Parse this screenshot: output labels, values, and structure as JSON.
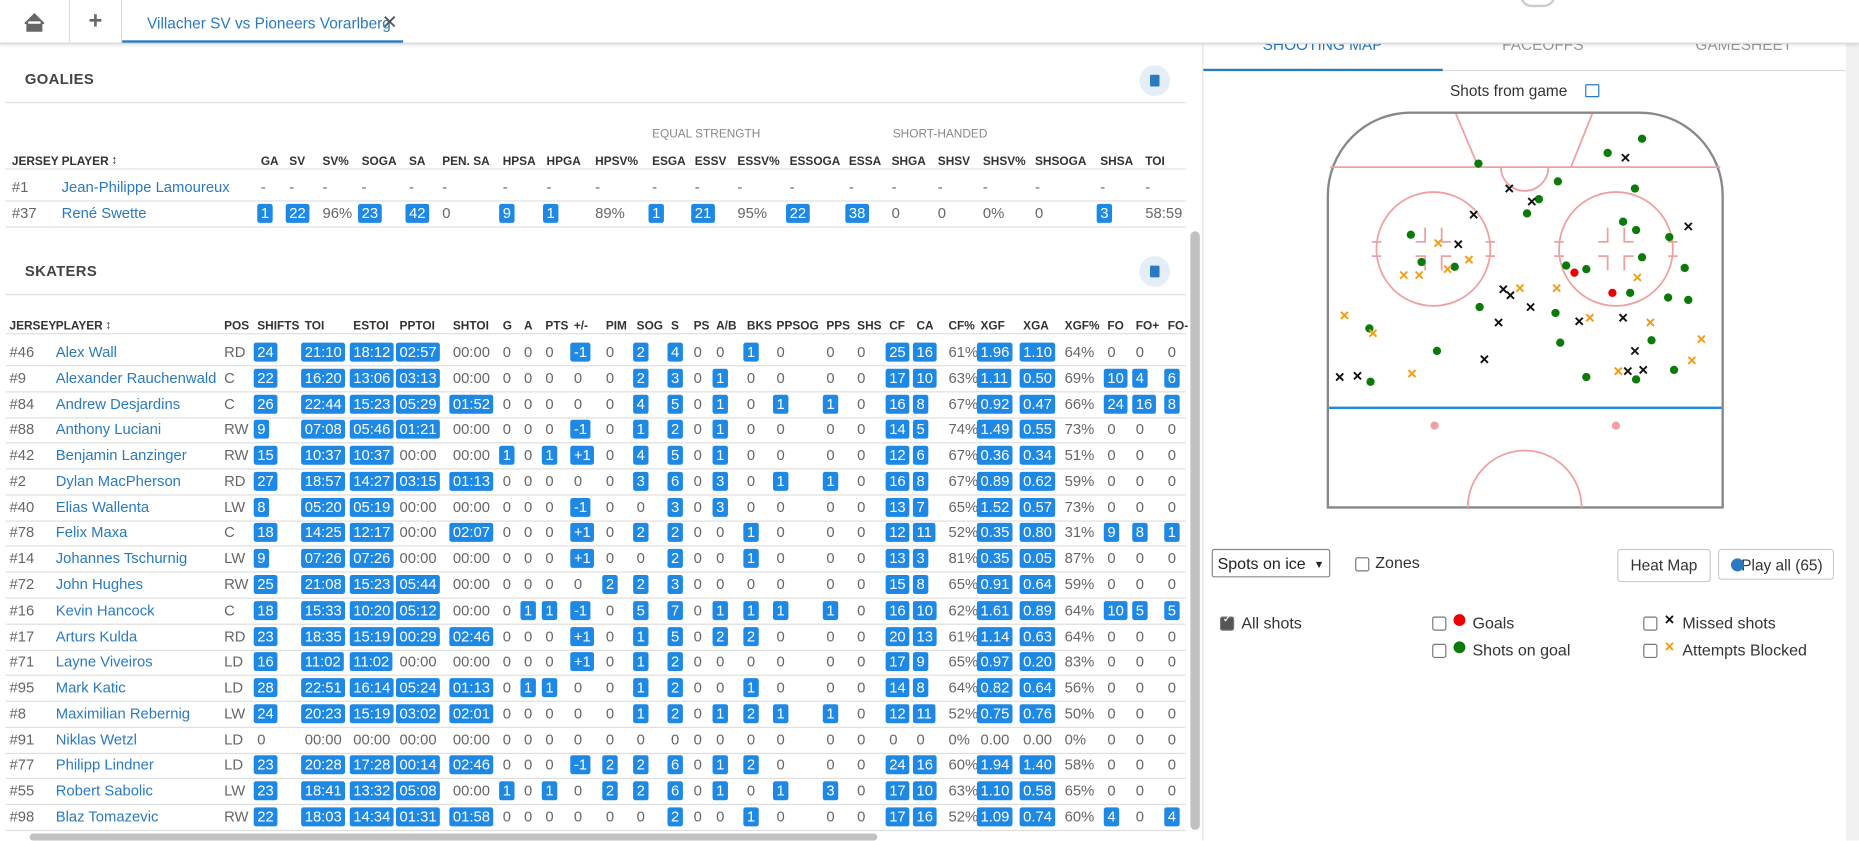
{
  "tabs": {
    "active": "Villacher SV vs Pioneers Vorarlberg"
  },
  "goalies": {
    "title": "GOALIES",
    "group_headers": [
      "EQUAL STRENGTH",
      "SHORT-HANDED"
    ],
    "columns": [
      "JERSEY",
      "PLAYER",
      "GA",
      "SV",
      "SV%",
      "SOGA",
      "SA",
      "PEN. SA",
      "HPSA",
      "HPGA",
      "HPSV%",
      "ESGA",
      "ESSV",
      "ESSV%",
      "ESSOGA",
      "ESSA",
      "SHGA",
      "SHSV",
      "SHSV%",
      "SHSOGA",
      "SHSA",
      "TOI"
    ],
    "rows": [
      [
        "#1",
        "Jean-Philippe Lamoureux",
        "-",
        "-",
        "-",
        "-",
        "-",
        "-",
        "-",
        "-",
        "-",
        "-",
        "-",
        "-",
        "-",
        "-",
        "-",
        "-",
        "-",
        "-",
        "-",
        "-"
      ],
      [
        "#37",
        "René Swette",
        "1",
        "22",
        "96%",
        "23",
        "42",
        "0",
        "9",
        "1",
        "89%",
        "1",
        "21",
        "95%",
        "22",
        "38",
        "0",
        "0",
        "0%",
        "0",
        "3",
        "58:59"
      ]
    ]
  },
  "skaters": {
    "title": "SKATERS",
    "columns": [
      "JERSEY",
      "PLAYER",
      "POS",
      "SHIFTS",
      "TOI",
      "ESTOI",
      "PPTOI",
      "SHTOI",
      "G",
      "A",
      "PTS",
      "+/-",
      "PIM",
      "SOG",
      "S",
      "PS",
      "A/B",
      "BKS",
      "PPSOG",
      "PPS",
      "SHS",
      "CF",
      "CA",
      "CF%",
      "XGF",
      "XGA",
      "XGF%",
      "FO",
      "FO+",
      "FO-"
    ],
    "rows": [
      [
        "#46",
        "Alex Wall",
        "RD",
        "24",
        "21:10",
        "18:12",
        "02:57",
        "00:00",
        "0",
        "0",
        "0",
        "-1",
        "0",
        "2",
        "4",
        "0",
        "0",
        "1",
        "0",
        "0",
        "0",
        "25",
        "16",
        "61%",
        "1.96",
        "1.10",
        "64%",
        "0",
        "0",
        "0"
      ],
      [
        "#9",
        "Alexander Rauchenwald",
        "C",
        "22",
        "16:20",
        "13:06",
        "03:13",
        "00:00",
        "0",
        "0",
        "0",
        "0",
        "0",
        "2",
        "3",
        "0",
        "1",
        "0",
        "0",
        "0",
        "0",
        "17",
        "10",
        "63%",
        "1.11",
        "0.50",
        "69%",
        "10",
        "4",
        "6"
      ],
      [
        "#84",
        "Andrew Desjardins",
        "C",
        "26",
        "22:44",
        "15:23",
        "05:29",
        "01:52",
        "0",
        "0",
        "0",
        "0",
        "0",
        "4",
        "5",
        "0",
        "1",
        "0",
        "1",
        "1",
        "0",
        "16",
        "8",
        "67%",
        "0.92",
        "0.47",
        "66%",
        "24",
        "16",
        "8"
      ],
      [
        "#88",
        "Anthony Luciani",
        "RW",
        "9",
        "07:08",
        "05:46",
        "01:21",
        "00:00",
        "0",
        "0",
        "0",
        "-1",
        "0",
        "1",
        "2",
        "0",
        "1",
        "0",
        "0",
        "0",
        "0",
        "14",
        "5",
        "74%",
        "1.49",
        "0.55",
        "73%",
        "0",
        "0",
        "0"
      ],
      [
        "#42",
        "Benjamin Lanzinger",
        "RW",
        "15",
        "10:37",
        "10:37",
        "00:00",
        "00:00",
        "1",
        "0",
        "1",
        "+1",
        "0",
        "4",
        "5",
        "0",
        "1",
        "0",
        "0",
        "0",
        "0",
        "12",
        "6",
        "67%",
        "0.36",
        "0.34",
        "51%",
        "0",
        "0",
        "0"
      ],
      [
        "#2",
        "Dylan MacPherson",
        "RD",
        "27",
        "18:57",
        "14:27",
        "03:15",
        "01:13",
        "0",
        "0",
        "0",
        "0",
        "0",
        "3",
        "6",
        "0",
        "3",
        "0",
        "1",
        "1",
        "0",
        "16",
        "8",
        "67%",
        "0.89",
        "0.62",
        "59%",
        "0",
        "0",
        "0"
      ],
      [
        "#40",
        "Elias Wallenta",
        "LW",
        "8",
        "05:20",
        "05:19",
        "00:00",
        "00:00",
        "0",
        "0",
        "0",
        "-1",
        "0",
        "0",
        "3",
        "0",
        "3",
        "0",
        "0",
        "0",
        "0",
        "13",
        "7",
        "65%",
        "1.52",
        "0.57",
        "73%",
        "0",
        "0",
        "0"
      ],
      [
        "#78",
        "Felix Maxa",
        "C",
        "18",
        "14:25",
        "12:17",
        "00:00",
        "02:07",
        "0",
        "0",
        "0",
        "+1",
        "0",
        "2",
        "2",
        "0",
        "0",
        "1",
        "0",
        "0",
        "0",
        "12",
        "11",
        "52%",
        "0.35",
        "0.80",
        "31%",
        "9",
        "8",
        "1"
      ],
      [
        "#14",
        "Johannes Tschurnig",
        "LW",
        "9",
        "07:26",
        "07:26",
        "00:00",
        "00:00",
        "0",
        "0",
        "0",
        "+1",
        "0",
        "0",
        "2",
        "0",
        "0",
        "1",
        "0",
        "0",
        "0",
        "13",
        "3",
        "81%",
        "0.35",
        "0.05",
        "87%",
        "0",
        "0",
        "0"
      ],
      [
        "#72",
        "John Hughes",
        "RW",
        "25",
        "21:08",
        "15:23",
        "05:44",
        "00:00",
        "0",
        "0",
        "0",
        "0",
        "2",
        "2",
        "3",
        "0",
        "0",
        "0",
        "0",
        "0",
        "0",
        "15",
        "8",
        "65%",
        "0.91",
        "0.64",
        "59%",
        "0",
        "0",
        "0"
      ],
      [
        "#16",
        "Kevin Hancock",
        "C",
        "18",
        "15:33",
        "10:20",
        "05:12",
        "00:00",
        "0",
        "1",
        "1",
        "-1",
        "0",
        "5",
        "7",
        "0",
        "1",
        "1",
        "1",
        "1",
        "0",
        "16",
        "10",
        "62%",
        "1.61",
        "0.89",
        "64%",
        "10",
        "5",
        "5"
      ],
      [
        "#17",
        "Arturs Kulda",
        "RD",
        "23",
        "18:35",
        "15:19",
        "00:29",
        "02:46",
        "0",
        "0",
        "0",
        "+1",
        "0",
        "1",
        "5",
        "0",
        "2",
        "2",
        "0",
        "0",
        "0",
        "20",
        "13",
        "61%",
        "1.14",
        "0.63",
        "64%",
        "0",
        "0",
        "0"
      ],
      [
        "#71",
        "Layne Viveiros",
        "LD",
        "16",
        "11:02",
        "11:02",
        "00:00",
        "00:00",
        "0",
        "0",
        "0",
        "+1",
        "0",
        "1",
        "2",
        "0",
        "0",
        "0",
        "0",
        "0",
        "0",
        "17",
        "9",
        "65%",
        "0.97",
        "0.20",
        "83%",
        "0",
        "0",
        "0"
      ],
      [
        "#95",
        "Mark Katic",
        "LD",
        "28",
        "22:51",
        "16:14",
        "05:24",
        "01:13",
        "0",
        "1",
        "1",
        "0",
        "0",
        "1",
        "2",
        "0",
        "0",
        "1",
        "0",
        "0",
        "0",
        "14",
        "8",
        "64%",
        "0.82",
        "0.64",
        "56%",
        "0",
        "0",
        "0"
      ],
      [
        "#8",
        "Maximilian Rebernig",
        "LW",
        "24",
        "20:23",
        "15:19",
        "03:02",
        "02:01",
        "0",
        "0",
        "0",
        "0",
        "0",
        "1",
        "2",
        "0",
        "1",
        "2",
        "1",
        "1",
        "0",
        "12",
        "11",
        "52%",
        "0.75",
        "0.76",
        "50%",
        "0",
        "0",
        "0"
      ],
      [
        "#91",
        "Niklas Wetzl",
        "LD",
        "0",
        "00:00",
        "00:00",
        "00:00",
        "00:00",
        "0",
        "0",
        "0",
        "0",
        "0",
        "0",
        "0",
        "0",
        "0",
        "0",
        "0",
        "0",
        "0",
        "0",
        "0",
        "0%",
        "0.00",
        "0.00",
        "0%",
        "0",
        "0",
        "0"
      ],
      [
        "#77",
        "Philipp Lindner",
        "LD",
        "23",
        "20:28",
        "17:28",
        "00:14",
        "02:46",
        "0",
        "0",
        "0",
        "-1",
        "2",
        "2",
        "6",
        "0",
        "1",
        "2",
        "0",
        "0",
        "0",
        "24",
        "16",
        "60%",
        "1.94",
        "1.40",
        "58%",
        "0",
        "0",
        "0"
      ],
      [
        "#55",
        "Robert Sabolic",
        "LW",
        "23",
        "18:41",
        "13:32",
        "05:08",
        "00:00",
        "1",
        "0",
        "1",
        "0",
        "2",
        "2",
        "6",
        "0",
        "1",
        "0",
        "1",
        "3",
        "0",
        "17",
        "10",
        "63%",
        "1.10",
        "0.58",
        "65%",
        "0",
        "0",
        "0"
      ],
      [
        "#98",
        "Blaz Tomazevic",
        "RW",
        "22",
        "18:03",
        "14:34",
        "01:31",
        "01:58",
        "0",
        "0",
        "0",
        "0",
        "0",
        "0",
        "2",
        "0",
        "0",
        "1",
        "0",
        "0",
        "0",
        "17",
        "16",
        "52%",
        "1.09",
        "0.74",
        "60%",
        "4",
        "0",
        "4"
      ]
    ]
  },
  "shooting_map": {
    "tabs": [
      "SHOOTING MAP",
      "FACEOFFS",
      "GAMESHEET"
    ],
    "title": "Shots from game",
    "view": "Spots on ice",
    "zones": "Zones",
    "heat_map": "Heat Map",
    "play_all": "Play all (65)",
    "filters": [
      "All shots",
      "Goals",
      "Shots on goal",
      "Missed shots",
      "Attempts Blocked"
    ]
  }
}
